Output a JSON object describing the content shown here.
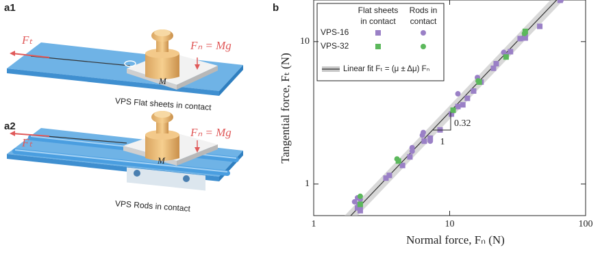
{
  "panels": {
    "a1": {
      "label": "a1",
      "force_t": "Fₜ",
      "force_n": "Fₙ = Mg",
      "mass": "M",
      "caption": "VPS Flat sheets in contact"
    },
    "a2": {
      "label": "a2",
      "force_t": "Fₜ",
      "force_n": "Fₙ = Mg",
      "mass": "M",
      "caption": "VPS Rods in contact"
    },
    "b": {
      "label": "b"
    }
  },
  "chart_data": {
    "type": "scatter",
    "x_label": "Normal force, Fₙ (N)",
    "y_label": "Tangential force, Fₜ (N)",
    "log_x": true,
    "log_y": true,
    "xlim": [
      1,
      100
    ],
    "ylim": [
      0.6,
      19.6
    ],
    "xticks": [
      1,
      10,
      100
    ],
    "yticks": [
      1,
      10
    ],
    "series": [
      {
        "name": "VPS-16",
        "contact": [
          "Flat sheets",
          "in contact"
        ],
        "marker": "square",
        "color": "#9a80c6",
        "x": [
          2.1,
          2.15,
          2.2,
          2.2,
          3.4,
          3.6,
          4.5,
          5.1,
          6.5,
          7.2,
          8.5,
          10.3,
          11.5,
          12.5,
          13.5,
          15,
          17,
          21,
          22,
          26,
          28,
          33,
          36,
          46,
          65
        ],
        "values": [
          0.68,
          0.72,
          0.7,
          0.65,
          1.1,
          1.15,
          1.35,
          1.55,
          2.0,
          2.1,
          2.4,
          3.1,
          3.5,
          3.6,
          4.0,
          4.5,
          5.2,
          6.5,
          7.0,
          8.0,
          8.5,
          10.5,
          10.6,
          12.8,
          19.5
        ]
      },
      {
        "name": "VPS-16",
        "contact": [
          "Rods in",
          "contact"
        ],
        "marker": "circle",
        "color": "#9a80c6",
        "x": [
          2.0,
          2.1,
          2.2,
          4.2,
          5.3,
          5.3,
          6.3,
          6.4,
          7.2,
          11.5,
          16,
          25,
          36,
          66
        ],
        "values": [
          0.75,
          0.8,
          0.78,
          1.45,
          1.7,
          1.8,
          2.2,
          2.3,
          2.0,
          4.3,
          5.6,
          8.4,
          11.2,
          19.6
        ]
      },
      {
        "name": "VPS-32",
        "contact": [
          "Flat sheets",
          "in contact"
        ],
        "marker": "square",
        "color": "#5cb85c",
        "x": [
          2.2,
          4.2,
          10.6,
          16.5,
          26,
          36
        ],
        "values": [
          0.72,
          1.45,
          3.3,
          5.2,
          7.8,
          11.8
        ]
      },
      {
        "name": "VPS-32",
        "contact": [
          "Rods in",
          "contact"
        ],
        "marker": "circle",
        "color": "#5cb85c",
        "x": [
          2.2,
          4.1,
          16.2,
          35.5
        ],
        "values": [
          0.82,
          1.5,
          5.3,
          11.4
        ]
      }
    ],
    "fit": {
      "name": "Linear fit Fₜ = (μ ± Δμ) Fₙ",
      "mu": 0.32,
      "delta_mu": 0.035,
      "exponent": 1,
      "color": "#333333",
      "band_color": "#c8c8c8"
    }
  }
}
